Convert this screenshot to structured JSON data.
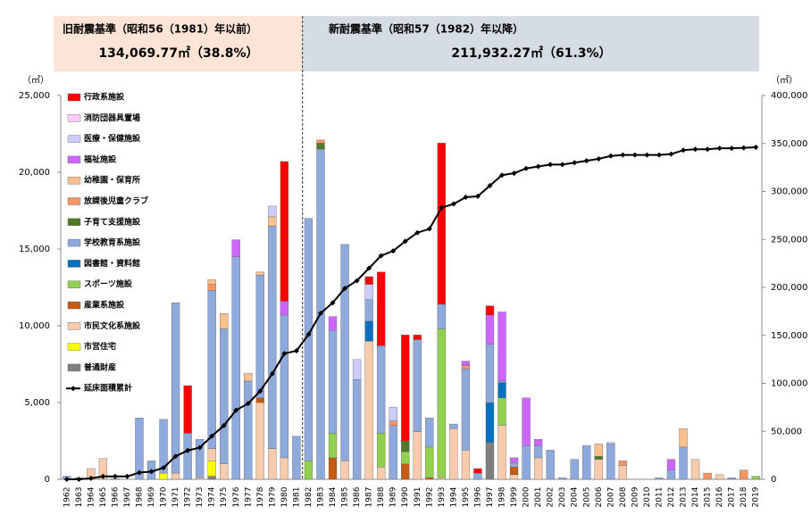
{
  "chart_data": {
    "type": "bar",
    "stacked": true,
    "annotations": [
      "旧耐震基準（昭和56（1981）年以前）",
      "134,069.77㎡（38.8%）",
      "新耐震基準（昭和57（1982）年以降）",
      "211,932.27㎡（61.3%）"
    ],
    "ylabel": "（㎡）",
    "y2label": "（㎡）",
    "categories": [
      "1962",
      "1963",
      "1964",
      "1965",
      "1966",
      "1967",
      "1968",
      "1969",
      "1970",
      "1971",
      "1972",
      "1973",
      "1974",
      "1975",
      "1976",
      "1977",
      "1978",
      "1979",
      "1980",
      "1981",
      "1982",
      "1983",
      "1984",
      "1985",
      "1986",
      "1987",
      "1988",
      "1989",
      "1990",
      "1991",
      "1992",
      "1993",
      "1994",
      "1995",
      "1996",
      "1997",
      "1998",
      "1999",
      "2000",
      "2001",
      "2002",
      "2003",
      "2004",
      "2005",
      "2006",
      "2007",
      "2008",
      "2009",
      "2010",
      "2011",
      "2012",
      "2013",
      "2014",
      "2015",
      "2016",
      "2017",
      "2018",
      "2019"
    ],
    "series": [
      {
        "name": "行政系施設",
        "color": "#ff0000",
        "values": [
          0,
          0,
          0,
          0,
          0,
          0,
          0,
          0,
          0,
          0,
          3100,
          0,
          0,
          0,
          0,
          0,
          0,
          0,
          9100,
          0,
          0,
          0,
          0,
          0,
          0,
          500,
          4800,
          0,
          6900,
          300,
          0,
          10500,
          0,
          0,
          300,
          600,
          0,
          0,
          0,
          0,
          0,
          0,
          0,
          0,
          0,
          0,
          0,
          0,
          0,
          0,
          0,
          0,
          0,
          0,
          0,
          0,
          0,
          0
        ]
      },
      {
        "name": "消防団器具置場",
        "color": "#ffccff",
        "values": [
          0,
          0,
          0,
          0,
          0,
          0,
          0,
          0,
          0,
          0,
          0,
          0,
          0,
          0,
          0,
          0,
          0,
          0,
          0,
          0,
          0,
          0,
          0,
          0,
          0,
          0,
          0,
          0,
          0,
          0,
          0,
          0,
          0,
          0,
          0,
          0,
          0,
          0,
          0,
          0,
          0,
          0,
          0,
          0,
          0,
          0,
          0,
          0,
          0,
          0,
          0,
          0,
          0,
          0,
          0,
          0,
          0,
          0
        ]
      },
      {
        "name": "医療・保健施設",
        "color": "#ccccff",
        "values": [
          0,
          0,
          0,
          0,
          0,
          0,
          0,
          0,
          0,
          0,
          0,
          0,
          0,
          0,
          0,
          0,
          0,
          700,
          0,
          0,
          0,
          0,
          0,
          0,
          1300,
          1000,
          0,
          900,
          0,
          0,
          0,
          0,
          0,
          0,
          0,
          0,
          0,
          0,
          0,
          0,
          0,
          0,
          0,
          0,
          0,
          100,
          0,
          0,
          0,
          0,
          0,
          0,
          0,
          0,
          0,
          0,
          0,
          0
        ]
      },
      {
        "name": "福祉施設",
        "color": "#cc66ff",
        "values": [
          0,
          0,
          0,
          0,
          0,
          0,
          0,
          0,
          0,
          0,
          0,
          0,
          0,
          0,
          1100,
          0,
          0,
          0,
          900,
          0,
          0,
          0,
          900,
          0,
          0,
          0,
          0,
          0,
          0,
          0,
          0,
          0,
          0,
          300,
          0,
          1900,
          4500,
          300,
          3100,
          400,
          0,
          0,
          0,
          0,
          0,
          0,
          0,
          0,
          0,
          0,
          700,
          0,
          0,
          0,
          0,
          0,
          0,
          0
        ]
      },
      {
        "name": "幼稚園・保育所",
        "color": "#fac090",
        "values": [
          0,
          0,
          0,
          0,
          0,
          0,
          0,
          0,
          0,
          0,
          0,
          0,
          300,
          1000,
          0,
          500,
          200,
          600,
          0,
          0,
          0,
          0,
          0,
          0,
          0,
          0,
          0,
          0,
          0,
          0,
          0,
          0,
          0,
          0,
          0,
          0,
          0,
          0,
          0,
          0,
          0,
          0,
          0,
          0,
          800,
          0,
          0,
          0,
          0,
          0,
          0,
          1200,
          0,
          0,
          0,
          0,
          0,
          0
        ]
      },
      {
        "name": "放課後児童クラブ",
        "color": "#f79664",
        "values": [
          0,
          0,
          0,
          0,
          0,
          0,
          0,
          0,
          0,
          0,
          0,
          0,
          400,
          0,
          0,
          0,
          0,
          0,
          0,
          0,
          0,
          200,
          0,
          0,
          0,
          0,
          0,
          300,
          0,
          0,
          0,
          0,
          0,
          200,
          0,
          0,
          0,
          0,
          0,
          0,
          0,
          0,
          0,
          0,
          0,
          0,
          300,
          0,
          0,
          0,
          0,
          0,
          0,
          400,
          0,
          0,
          600,
          0
        ]
      },
      {
        "name": "子育て支援施設",
        "color": "#4f7a28",
        "values": [
          0,
          0,
          0,
          0,
          0,
          0,
          0,
          0,
          0,
          0,
          0,
          0,
          0,
          0,
          0,
          0,
          0,
          0,
          0,
          0,
          0,
          400,
          0,
          0,
          0,
          0,
          0,
          0,
          700,
          0,
          0,
          0,
          0,
          0,
          0,
          0,
          0,
          0,
          0,
          0,
          0,
          0,
          0,
          0,
          200,
          0,
          0,
          0,
          0,
          0,
          0,
          0,
          0,
          0,
          0,
          0,
          0,
          0
        ]
      },
      {
        "name": "学校教育系施設",
        "color": "#8ea9db",
        "values": [
          200,
          100,
          0,
          0,
          50,
          0,
          4000,
          1200,
          3500,
          11100,
          3000,
          2500,
          10300,
          8800,
          14500,
          6400,
          8000,
          14500,
          9300,
          2800,
          15800,
          21500,
          6700,
          14100,
          6500,
          1400,
          5700,
          3500,
          0,
          6000,
          1900,
          1600,
          300,
          5300,
          400,
          3800,
          100,
          300,
          2200,
          800,
          1900,
          100,
          1300,
          2200,
          0,
          2300,
          0,
          0,
          0,
          100,
          600,
          2100,
          0,
          0,
          0,
          100,
          0,
          0
        ]
      },
      {
        "name": "図書館・資料館",
        "color": "#0070c0",
        "values": [
          0,
          0,
          0,
          0,
          0,
          0,
          0,
          0,
          0,
          0,
          0,
          0,
          0,
          0,
          0,
          0,
          0,
          0,
          0,
          0,
          0,
          0,
          0,
          0,
          0,
          1300,
          0,
          0,
          0,
          0,
          0,
          0,
          0,
          0,
          0,
          2600,
          1000,
          0,
          0,
          0,
          0,
          0,
          0,
          0,
          0,
          0,
          0,
          0,
          0,
          0,
          0,
          0,
          0,
          0,
          0,
          0,
          0,
          0
        ]
      },
      {
        "name": "スポーツ施設",
        "color": "#92d050",
        "values": [
          0,
          0,
          0,
          0,
          0,
          0,
          0,
          0,
          0,
          0,
          0,
          0,
          0,
          0,
          0,
          0,
          0,
          0,
          0,
          0,
          1200,
          0,
          1600,
          0,
          0,
          0,
          2200,
          0,
          800,
          0,
          2000,
          9700,
          0,
          0,
          0,
          0,
          1800,
          0,
          0,
          0,
          0,
          0,
          0,
          0,
          0,
          0,
          0,
          0,
          0,
          0,
          0,
          0,
          0,
          0,
          0,
          0,
          0,
          200
        ]
      },
      {
        "name": "産業系施設",
        "color": "#c55a11",
        "values": [
          0,
          0,
          0,
          0,
          0,
          0,
          0,
          0,
          0,
          0,
          0,
          0,
          0,
          0,
          0,
          0,
          300,
          0,
          0,
          0,
          0,
          0,
          1400,
          0,
          0,
          0,
          0,
          0,
          1000,
          0,
          100,
          0,
          0,
          0,
          0,
          0,
          0,
          500,
          0,
          0,
          0,
          0,
          0,
          0,
          0,
          0,
          0,
          0,
          0,
          0,
          0,
          0,
          0,
          0,
          0,
          0,
          0,
          0
        ]
      },
      {
        "name": "市民文化系施設",
        "color": "#f8cbad",
        "values": [
          0,
          0,
          700,
          1350,
          0,
          0,
          0,
          0,
          0,
          400,
          0,
          100,
          800,
          1000,
          0,
          0,
          5000,
          2000,
          1400,
          0,
          0,
          0,
          0,
          1200,
          0,
          9000,
          800,
          0,
          0,
          3100,
          0,
          100,
          3300,
          1900,
          0,
          0,
          3500,
          300,
          0,
          1400,
          0,
          0,
          0,
          0,
          1300,
          0,
          900,
          0,
          0,
          0,
          0,
          0,
          1300,
          0,
          300,
          0,
          0,
          0
        ]
      },
      {
        "name": "市営住宅",
        "color": "#ffff00",
        "values": [
          0,
          0,
          0,
          0,
          0,
          0,
          0,
          0,
          400,
          0,
          0,
          0,
          1000,
          0,
          0,
          0,
          0,
          0,
          0,
          0,
          0,
          0,
          0,
          0,
          0,
          0,
          0,
          0,
          0,
          0,
          0,
          0,
          0,
          0,
          0,
          0,
          0,
          0,
          0,
          0,
          0,
          0,
          0,
          0,
          0,
          0,
          0,
          0,
          0,
          0,
          0,
          0,
          0,
          0,
          0,
          0,
          0,
          0
        ]
      },
      {
        "name": "普通財産",
        "color": "#7f7f7f",
        "values": [
          0,
          0,
          0,
          0,
          0,
          0,
          0,
          0,
          0,
          0,
          0,
          0,
          200,
          0,
          0,
          0,
          0,
          0,
          0,
          0,
          0,
          0,
          0,
          0,
          0,
          0,
          0,
          0,
          0,
          0,
          0,
          0,
          0,
          0,
          0,
          2400,
          0,
          0,
          0,
          0,
          0,
          0,
          0,
          0,
          0,
          0,
          0,
          0,
          0,
          0,
          0,
          0,
          0,
          0,
          0,
          0,
          0,
          0
        ]
      },
      {
        "name": "延床面積累計",
        "color": "#000000",
        "type": "line",
        "axis": "y2",
        "values": [
          0,
          0,
          1000,
          3000,
          3000,
          3000,
          7000,
          8000,
          12000,
          24000,
          30000,
          33000,
          45000,
          56000,
          72000,
          79000,
          92000,
          110000,
          131000,
          134000,
          151000,
          173000,
          184000,
          199000,
          207000,
          220000,
          233000,
          238000,
          248000,
          257000,
          261000,
          283000,
          287000,
          294000,
          295000,
          306000,
          317000,
          319000,
          324000,
          326000,
          328000,
          328000,
          330000,
          332000,
          334000,
          337000,
          338000,
          338000,
          338000,
          338000,
          339000,
          343000,
          344000,
          344000,
          345000,
          345000,
          345500,
          346000
        ]
      }
    ],
    "ylim": [
      0,
      25000
    ],
    "yticks": [
      0,
      {
        "value": 5000,
        "label": "5,000"
      },
      {
        "value": 10000,
        "label": "10,000"
      },
      {
        "value": 15000,
        "label": "15,000"
      },
      {
        "value": 20000,
        "label": "20,000"
      },
      {
        "value": 25000,
        "label": "25,000"
      }
    ],
    "y2lim": [
      0,
      400000
    ],
    "y2ticks": [
      0,
      {
        "value": 50000,
        "label": "50,000"
      },
      {
        "value": 100000,
        "label": "100,000"
      },
      {
        "value": 150000,
        "label": "150,000"
      },
      {
        "value": 200000,
        "label": "200,000"
      },
      {
        "value": 250000,
        "label": "250,000"
      },
      {
        "value": 300000,
        "label": "300,000"
      },
      {
        "value": 350000,
        "label": "350,000"
      },
      {
        "value": 400000,
        "label": "400,000"
      }
    ],
    "grid": false
  }
}
